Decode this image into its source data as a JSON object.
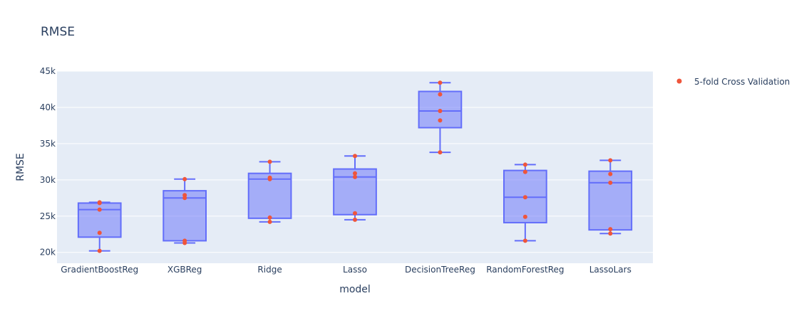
{
  "chart_data": {
    "type": "box",
    "title": "RMSE",
    "xlabel": "model",
    "ylabel": "RMSE",
    "categories": [
      "GradientBoostReg",
      "XGBReg",
      "Ridge",
      "Lasso",
      "DecisionTreeReg",
      "RandomForestReg",
      "LassoLars"
    ],
    "ylim": [
      18500,
      45000
    ],
    "yticks": [
      20000,
      25000,
      30000,
      35000,
      40000,
      45000
    ],
    "ytick_labels": [
      "20k",
      "25k",
      "30k",
      "35k",
      "40k",
      "45k"
    ],
    "grid": true,
    "legend": {
      "position": "top-right",
      "entries": [
        "5-fold Cross Validation"
      ]
    },
    "series": [
      {
        "name": "5-fold Cross Validation",
        "boxes": [
          {
            "category": "GradientBoostReg",
            "points": [
              20200,
              22700,
              25900,
              26800,
              26900
            ],
            "min": 20200,
            "q1": 22100,
            "median": 25900,
            "q3": 26800,
            "max": 26900
          },
          {
            "category": "XGBReg",
            "points": [
              21300,
              21600,
              27500,
              27900,
              30100
            ],
            "min": 21300,
            "q1": 21600,
            "median": 27500,
            "q3": 28500,
            "max": 30100
          },
          {
            "category": "Ridge",
            "points": [
              24200,
              24800,
              30100,
              30300,
              32500
            ],
            "min": 24200,
            "q1": 24700,
            "median": 30100,
            "q3": 30900,
            "max": 32500
          },
          {
            "category": "Lasso",
            "points": [
              24500,
              25400,
              30400,
              30900,
              33300
            ],
            "min": 24500,
            "q1": 25200,
            "median": 30400,
            "q3": 31500,
            "max": 33300
          },
          {
            "category": "DecisionTreeReg",
            "points": [
              33800,
              38200,
              39500,
              41800,
              43400
            ],
            "min": 33800,
            "q1": 37200,
            "median": 39500,
            "q3": 42200,
            "max": 43400
          },
          {
            "category": "RandomForestReg",
            "points": [
              21600,
              24900,
              27600,
              31100,
              32100
            ],
            "min": 21600,
            "q1": 24100,
            "median": 27600,
            "q3": 31300,
            "max": 32100
          },
          {
            "category": "LassoLars",
            "points": [
              22600,
              23200,
              29600,
              30800,
              32700
            ],
            "min": 22600,
            "q1": 23100,
            "median": 29600,
            "q3": 31200,
            "max": 32700
          }
        ]
      }
    ]
  },
  "colors": {
    "plot_bg": "#e5ecf6",
    "grid": "#ffffff",
    "box_line": "#636efa",
    "box_fill": "rgba(99,110,250,0.5)",
    "point": "#ef553b",
    "text": "#2a3f5f"
  }
}
